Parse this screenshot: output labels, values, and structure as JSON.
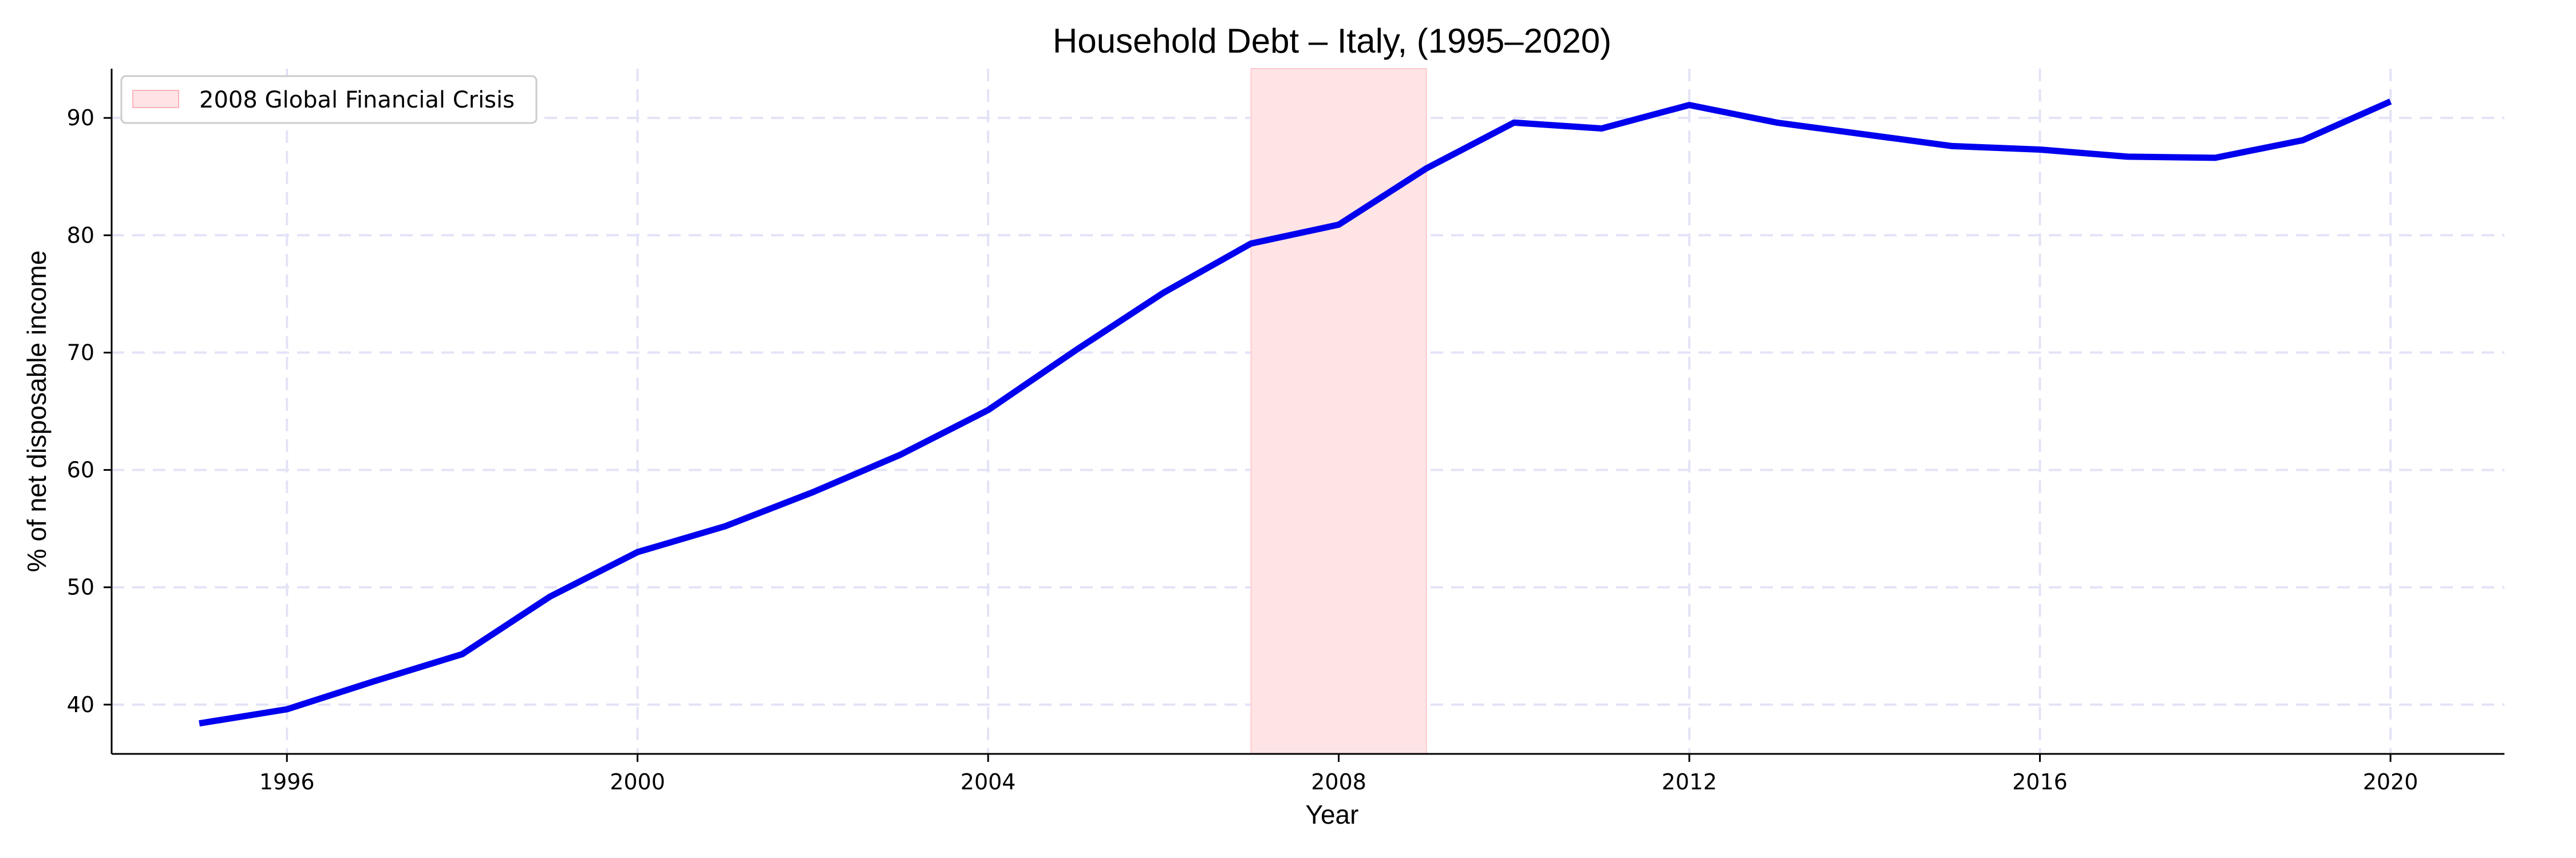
{
  "chart_data": {
    "type": "line",
    "title": "Household Debt – Italy, (1995–2020)",
    "xlabel": "Year",
    "ylabel": "% of net disposable income",
    "xlim": [
      1994.0,
      2021.3
    ],
    "ylim": [
      35.8,
      94.2
    ],
    "xticks": [
      1996,
      2000,
      2004,
      2008,
      2012,
      2016,
      2020
    ],
    "yticks": [
      40,
      50,
      60,
      70,
      80,
      90
    ],
    "grid": true,
    "legend_position": "top-left",
    "series": [
      {
        "color": "#0000ee",
        "x": [
          1995,
          1996,
          1997,
          1998,
          1999,
          2000,
          2001,
          2002,
          2003,
          2004,
          2005,
          2006,
          2007,
          2008,
          2009,
          2010,
          2011,
          2012,
          2013,
          2014,
          2015,
          2016,
          2017,
          2018,
          2019,
          2020
        ],
        "y": [
          38.4,
          39.6,
          42.0,
          44.3,
          49.2,
          53.0,
          55.2,
          58.1,
          61.3,
          65.1,
          70.2,
          75.1,
          79.3,
          80.9,
          85.7,
          89.6,
          89.1,
          91.1,
          89.6,
          88.6,
          87.6,
          87.3,
          86.7,
          86.6,
          88.1,
          91.4
        ]
      }
    ],
    "shaded_regions": [
      {
        "label": "2008 Global Financial Crisis",
        "x_start": 2007,
        "x_end": 2009,
        "color": "#ffe4e6"
      }
    ]
  }
}
